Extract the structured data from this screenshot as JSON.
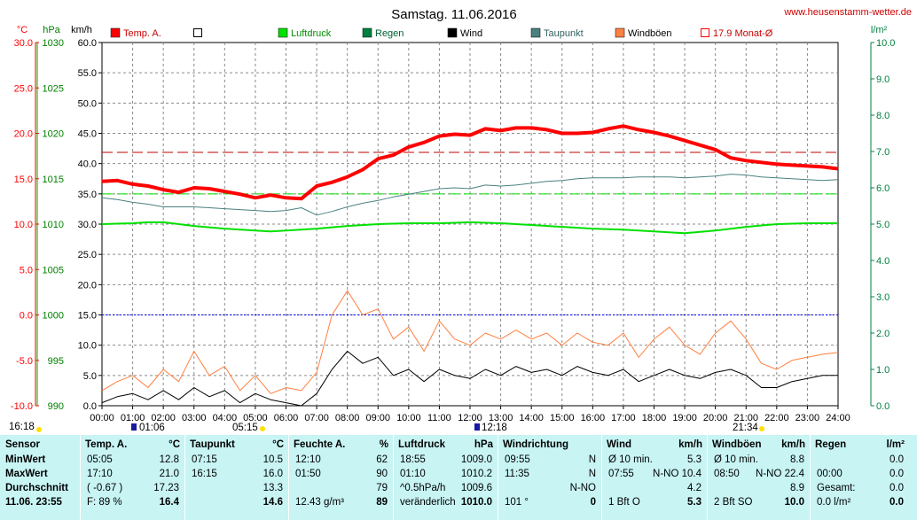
{
  "title": "Samstag. 11.06.2016",
  "website": "www.heusenstamm-wetter.de",
  "units": {
    "temp": "°C",
    "press": "hPa",
    "wind": "km/h",
    "rain": "l/m²"
  },
  "legend": [
    {
      "label": "Temp. A.",
      "color": "#ff0000",
      "style": "filled"
    },
    {
      "label": "",
      "color": "#000000",
      "style": "empty"
    },
    {
      "label": "Luftdruck",
      "color": "#00e000",
      "style": "filled"
    },
    {
      "label": "Regen",
      "color": "#008040",
      "style": "filled"
    },
    {
      "label": "Wind",
      "color": "#000000",
      "style": "filled"
    },
    {
      "label": "Taupunkt",
      "color": "#4a8080",
      "style": "filled"
    },
    {
      "label": "Windböen",
      "color": "#ff8040",
      "style": "filled"
    },
    {
      "label": "17.9 Monat-Ø",
      "color": "#ff0000",
      "style": "empty"
    }
  ],
  "markers": {
    "sunrise": "05:15",
    "sunset": "21:34",
    "moonrise": "01:06",
    "moonset": "12:18",
    "left_time": "16:18"
  },
  "chart_data": {
    "type": "line",
    "title": "Samstag. 11.06.2016",
    "x_range": [
      0,
      24
    ],
    "x_ticks": [
      "00:00",
      "01:00",
      "02:00",
      "03:00",
      "04:00",
      "05:00",
      "06:00",
      "07:00",
      "08:00",
      "09:00",
      "10:00",
      "11:00",
      "12:00",
      "13:00",
      "14:00",
      "15:00",
      "16:00",
      "17:00",
      "18:00",
      "19:00",
      "20:00",
      "21:00",
      "22:00",
      "23:00",
      "24:00"
    ],
    "axes": {
      "temp": {
        "unit": "°C",
        "range": [
          -10,
          30
        ],
        "ticks": [
          "30.0",
          "25.0",
          "20.0",
          "15.0",
          "10.0",
          "5.0",
          "0.0",
          "-5.0",
          "-10.0"
        ],
        "color": "#ff0000"
      },
      "press": {
        "unit": "hPa",
        "range": [
          990,
          1030
        ],
        "ticks": [
          "1030",
          "1025",
          "1020",
          "1015",
          "1010",
          "1005",
          "1000",
          "995",
          "990"
        ],
        "color": "#008000"
      },
      "wind": {
        "unit": "km/h",
        "range": [
          0,
          60
        ],
        "ticks": [
          "60.0",
          "55.0",
          "50.0",
          "45.0",
          "40.0",
          "35.0",
          "30.0",
          "25.0",
          "20.0",
          "15.0",
          "10.0",
          "5.0",
          "0.0"
        ],
        "color": "#000000"
      },
      "rain": {
        "unit": "l/m²",
        "range": [
          0,
          10
        ],
        "ticks": [
          "10.0",
          "9.0",
          "8.0",
          "7.0",
          "6.0",
          "5.0",
          "4.0",
          "3.0",
          "2.0",
          "1.0",
          "0.0"
        ],
        "color": "#008040"
      }
    },
    "reference_lines": [
      {
        "name": "17.9 Monat-Ø",
        "value": 17.9,
        "axis": "temp",
        "color": "#c00000",
        "style": "dashed"
      },
      {
        "name": "",
        "value": 35,
        "axis": "wind",
        "color": "#00e000",
        "style": "dashed"
      },
      {
        "name": "",
        "value": 15,
        "axis": "wind",
        "color": "#0000ff",
        "style": "dotted"
      }
    ],
    "series": [
      {
        "name": "Temp. A.",
        "axis": "temp",
        "color": "#ff0000",
        "width": 4,
        "x": [
          0,
          0.5,
          1,
          1.5,
          2,
          2.5,
          3,
          3.5,
          4,
          4.5,
          5,
          5.5,
          6,
          6.5,
          7,
          7.5,
          8,
          8.5,
          9,
          9.5,
          10,
          10.5,
          11,
          11.5,
          12,
          12.5,
          13,
          13.5,
          14,
          14.5,
          15,
          15.5,
          16,
          16.5,
          17,
          17.5,
          18,
          18.5,
          19,
          19.5,
          20,
          20.5,
          21,
          21.5,
          22,
          22.5,
          23,
          23.5,
          24
        ],
        "y": [
          14.7,
          14.8,
          14.4,
          14.2,
          13.8,
          13.5,
          14.0,
          13.9,
          13.6,
          13.3,
          12.9,
          13.2,
          12.9,
          12.8,
          14.2,
          14.6,
          15.2,
          16.0,
          17.2,
          17.6,
          18.5,
          19.0,
          19.7,
          19.9,
          19.8,
          20.5,
          20.3,
          20.6,
          20.6,
          20.4,
          20.0,
          20.0,
          20.1,
          20.5,
          20.8,
          20.4,
          20.1,
          19.7,
          19.2,
          18.7,
          18.2,
          17.3,
          17.0,
          16.8,
          16.6,
          16.5,
          16.4,
          16.3,
          16.1
        ]
      },
      {
        "name": "Taupunkt",
        "axis": "temp",
        "color": "#4a8080",
        "width": 1,
        "x": [
          0,
          0.5,
          1,
          1.5,
          2,
          2.5,
          3,
          3.5,
          4,
          4.5,
          5,
          5.5,
          6,
          6.5,
          7,
          7.5,
          8,
          8.5,
          9,
          9.5,
          10,
          10.5,
          11,
          11.5,
          12,
          12.5,
          13,
          13.5,
          14,
          14.5,
          15,
          15.5,
          16,
          16.5,
          17,
          17.5,
          18,
          18.5,
          19,
          19.5,
          20,
          20.5,
          21,
          21.5,
          22,
          22.5,
          23,
          23.5,
          24
        ],
        "y": [
          12.9,
          12.7,
          12.4,
          12.2,
          11.9,
          11.9,
          11.9,
          11.8,
          11.7,
          11.6,
          11.5,
          11.4,
          11.5,
          11.8,
          11.0,
          11.4,
          11.9,
          12.3,
          12.6,
          13.0,
          13.3,
          13.6,
          13.9,
          14.0,
          13.9,
          14.3,
          14.2,
          14.3,
          14.5,
          14.7,
          14.8,
          15.0,
          15.1,
          15.1,
          15.1,
          15.2,
          15.2,
          15.2,
          15.1,
          15.2,
          15.3,
          15.5,
          15.4,
          15.2,
          15.1,
          15.0,
          14.9,
          14.8,
          14.9
        ]
      },
      {
        "name": "Luftdruck",
        "axis": "press",
        "color": "#00e000",
        "width": 2,
        "x": [
          0,
          1,
          1.5,
          2,
          3,
          4,
          5,
          5.5,
          6,
          7,
          8,
          9,
          10,
          11,
          12,
          13,
          14,
          15,
          16,
          17,
          18,
          19,
          20,
          21,
          22,
          23,
          24
        ],
        "y": [
          1010.0,
          1010.1,
          1010.2,
          1010.2,
          1009.8,
          1009.5,
          1009.3,
          1009.2,
          1009.3,
          1009.5,
          1009.8,
          1010.0,
          1010.1,
          1010.1,
          1010.2,
          1010.1,
          1009.9,
          1009.7,
          1009.5,
          1009.4,
          1009.2,
          1009.0,
          1009.3,
          1009.7,
          1010.0,
          1010.1,
          1010.1
        ]
      },
      {
        "name": "Wind",
        "axis": "wind",
        "color": "#000000",
        "width": 1,
        "x": [
          0,
          0.5,
          1,
          1.5,
          2,
          2.5,
          3,
          3.5,
          4,
          4.5,
          5,
          5.5,
          6,
          6.5,
          7,
          7.5,
          8,
          8.5,
          9,
          9.5,
          10,
          10.5,
          11,
          11.5,
          12,
          12.5,
          13,
          13.5,
          14,
          14.5,
          15,
          15.5,
          16,
          16.5,
          17,
          17.5,
          18,
          18.5,
          19,
          19.5,
          20,
          20.5,
          21,
          21.5,
          22,
          22.5,
          23,
          23.5,
          24
        ],
        "y": [
          0.5,
          1.5,
          2.0,
          1.0,
          2.5,
          1.0,
          3.0,
          1.5,
          2.5,
          0.5,
          2.0,
          1.0,
          0.5,
          0.0,
          2.0,
          6.0,
          9.0,
          7.0,
          8.0,
          5.0,
          6.0,
          4.0,
          6.0,
          5.0,
          4.5,
          6.0,
          5.0,
          6.5,
          5.5,
          6.0,
          5.0,
          6.5,
          5.5,
          5.0,
          6.0,
          4.0,
          5.0,
          6.0,
          5.0,
          4.5,
          5.5,
          6.0,
          5.0,
          3.0,
          3.0,
          4.0,
          4.5,
          5.0,
          5.0
        ]
      },
      {
        "name": "Windböen",
        "axis": "wind",
        "color": "#ff8040",
        "width": 1,
        "x": [
          0,
          0.5,
          1,
          1.5,
          2,
          2.5,
          3,
          3.5,
          4,
          4.5,
          5,
          5.5,
          6,
          6.5,
          7,
          7.5,
          8,
          8.5,
          9,
          9.5,
          10,
          10.5,
          11,
          11.5,
          12,
          12.5,
          13,
          13.5,
          14,
          14.5,
          15,
          15.5,
          16,
          16.5,
          17,
          17.5,
          18,
          18.5,
          19,
          19.5,
          20,
          20.5,
          21,
          21.5,
          22,
          22.5,
          23,
          23.5,
          24
        ],
        "y": [
          2.5,
          4.0,
          5.0,
          3.0,
          6.0,
          4.0,
          9.0,
          5.0,
          6.5,
          2.5,
          5.0,
          2.0,
          3.0,
          2.5,
          5.5,
          15.0,
          19.0,
          15.0,
          16.0,
          11.0,
          13.0,
          9.0,
          14.0,
          11.0,
          10.0,
          12.0,
          11.0,
          12.5,
          11.0,
          12.0,
          10.0,
          12.0,
          10.5,
          10.0,
          12.0,
          8.0,
          11.0,
          13.0,
          10.0,
          8.5,
          12.0,
          14.0,
          11.0,
          7.0,
          6.0,
          7.5,
          8.0,
          8.5,
          8.8
        ]
      }
    ]
  },
  "stats": {
    "headers": [
      {
        "name": "Sensor",
        "unit": ""
      },
      {
        "name": "Temp. A.",
        "unit": "°C"
      },
      {
        "name": "Taupunkt",
        "unit": "°C"
      },
      {
        "name": "Feuchte A.",
        "unit": "%"
      },
      {
        "name": "Luftdruck",
        "unit": "hPa"
      },
      {
        "name": "Windrichtung",
        "unit": ""
      },
      {
        "name": "Wind",
        "unit": "km/h"
      },
      {
        "name": "Windböen",
        "unit": "km/h"
      },
      {
        "name": "Regen",
        "unit": "l/m²"
      }
    ],
    "row_labels": [
      "MinWert",
      "MaxWert",
      "Durchschnitt",
      "11.06. 23:55"
    ],
    "temp": [
      [
        "05:05",
        "12.8"
      ],
      [
        "17:10",
        "21.0"
      ],
      [
        "( -0.67 )",
        "17.23"
      ],
      [
        "F: 89 %",
        "16.4"
      ]
    ],
    "dew": [
      [
        "07:15",
        "10.5"
      ],
      [
        "16:15",
        "16.0"
      ],
      [
        "",
        "13.3"
      ],
      [
        "",
        "14.6"
      ]
    ],
    "hum": [
      [
        "12:10",
        "62"
      ],
      [
        "01:50",
        "90"
      ],
      [
        "",
        "79"
      ],
      [
        "12.43 g/m³",
        "89"
      ]
    ],
    "press": [
      [
        "18:55",
        "1009.0"
      ],
      [
        "01:10",
        "1010.2"
      ],
      [
        "^0.5hPa/h",
        "1009.6"
      ],
      [
        "veränderlich",
        "1010.0"
      ]
    ],
    "winddir": [
      [
        "09:55",
        "N"
      ],
      [
        "11:35",
        "N"
      ],
      [
        "",
        "N-NO"
      ],
      [
        "101 °",
        "0"
      ]
    ],
    "wind": [
      [
        "Ø 10 min.",
        "5.3"
      ],
      [
        "07:55",
        "N-NO 10.4"
      ],
      [
        "",
        "4.2"
      ],
      [
        "1 Bft O",
        "5.3"
      ]
    ],
    "gust": [
      [
        "Ø 10 min.",
        "8.8"
      ],
      [
        "08:50",
        "N-NO 22.4"
      ],
      [
        "",
        "8.9"
      ],
      [
        "2 Bft SO",
        "10.0"
      ]
    ],
    "rain": [
      [
        "",
        "0.0"
      ],
      [
        "00:00",
        "0.0"
      ],
      [
        "Gesamt:",
        "0.0"
      ],
      [
        "0.0 l/m²",
        "0.0"
      ]
    ]
  }
}
